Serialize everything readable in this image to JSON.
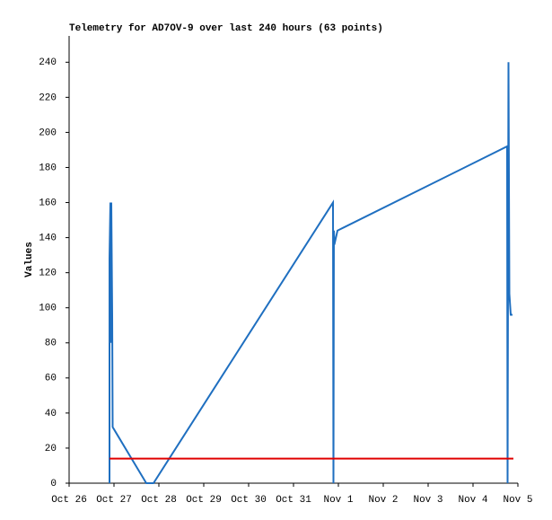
{
  "chart_data": {
    "type": "line",
    "title": "Telemetry for AD7OV-9 over last 240 hours (63 points)",
    "y_label": "Values",
    "xlim": [
      0,
      10
    ],
    "xticks": [
      {
        "value": 0,
        "label": "Oct 26"
      },
      {
        "value": 1,
        "label": "Oct 27"
      },
      {
        "value": 2,
        "label": "Oct 28"
      },
      {
        "value": 3,
        "label": "Oct 29"
      },
      {
        "value": 4,
        "label": "Oct 30"
      },
      {
        "value": 5,
        "label": "Oct 31"
      },
      {
        "value": 6,
        "label": "Nov 1"
      },
      {
        "value": 7,
        "label": "Nov 2"
      },
      {
        "value": 8,
        "label": "Nov 3"
      },
      {
        "value": 9,
        "label": "Nov 4"
      },
      {
        "value": 10,
        "label": "Nov 5"
      }
    ],
    "ylim": [
      0,
      255
    ],
    "yticks": [
      0,
      20,
      40,
      60,
      80,
      100,
      120,
      140,
      160,
      180,
      200,
      220,
      240
    ],
    "series": [
      {
        "color": "#1f6fc0",
        "x": [
          0.9,
          0.9,
          0.92,
          0.93,
          0.94,
          0.96,
          0.97,
          1.72,
          1.88,
          5.88,
          5.89,
          5.9,
          5.91,
          5.98,
          9.76,
          9.77,
          9.79,
          9.81,
          9.84,
          9.88
        ],
        "values": [
          0,
          128,
          160,
          80,
          160,
          96,
          32,
          0,
          0,
          160,
          0,
          144,
          136,
          144,
          192,
          0,
          240,
          108,
          96,
          96
        ]
      },
      {
        "color": "#e00000",
        "x": [
          0.9,
          9.9
        ],
        "values": [
          14,
          14
        ]
      }
    ]
  }
}
